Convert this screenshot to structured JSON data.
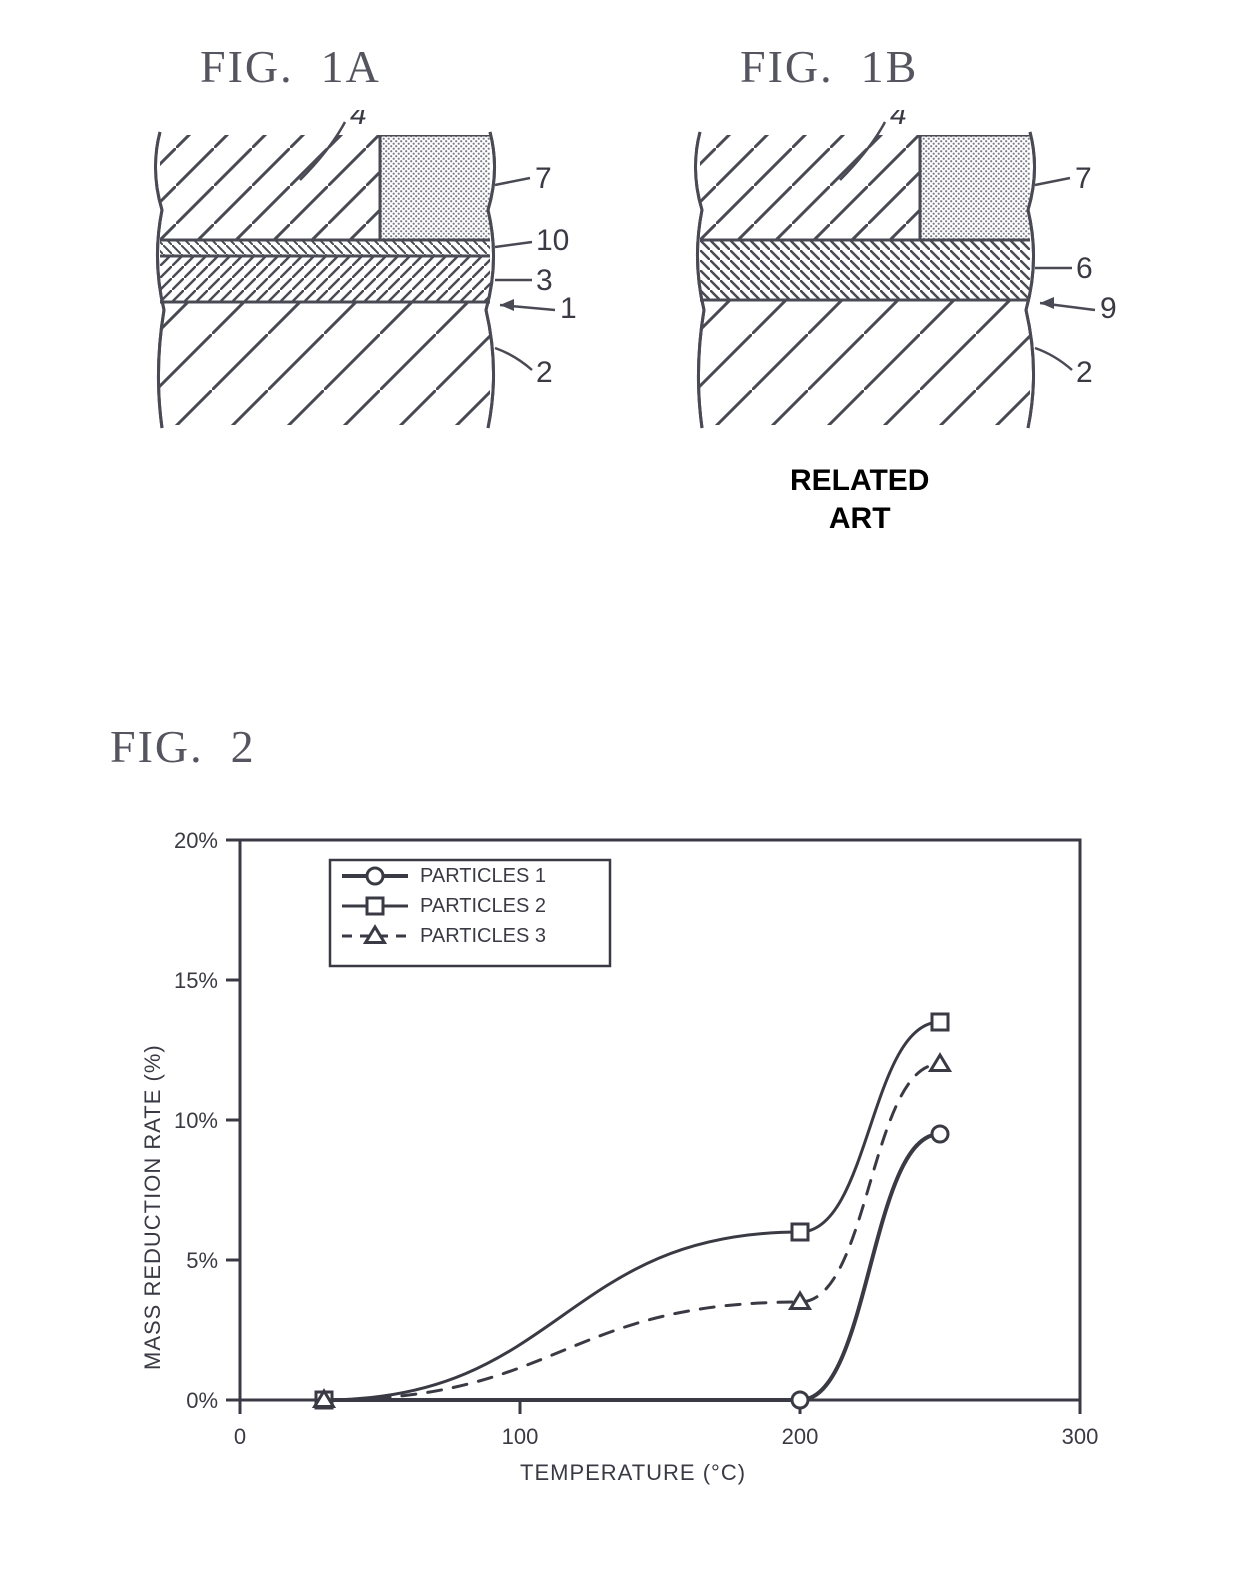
{
  "fig1a": {
    "label": "FIG.  1A",
    "label_fontsize": 46,
    "callouts": [
      "4",
      "7",
      "10",
      "3",
      "1",
      "2"
    ],
    "callout_fontsize": 30,
    "stroke": "#4a4a55",
    "stroke_width": 3,
    "layers": {
      "topHatchSpacing": 38,
      "midHatchSpacing": 12,
      "thinHatchSpacing": 9,
      "bottomHatchSpacing": 56,
      "dottedFill": "#7b7b88"
    }
  },
  "fig1b": {
    "label": "FIG.  1B",
    "label_fontsize": 46,
    "related_art": "RELATED\nART",
    "related_art_fontsize": 30,
    "callouts": [
      "4",
      "7",
      "6",
      "9",
      "2"
    ],
    "callout_fontsize": 30,
    "stroke": "#4a4a55",
    "stroke_width": 3
  },
  "fig2": {
    "label": "FIG.  2",
    "label_fontsize": 22,
    "type": "line",
    "xlabel": "TEMPERATURE (°C)",
    "ylabel": "MASS REDUCTION RATE (%)",
    "xlim": [
      0,
      300
    ],
    "ylim": [
      0,
      20
    ],
    "xticks": [
      0,
      100,
      200,
      300
    ],
    "yticks": [
      "0%",
      "5%",
      "10%",
      "15%",
      "20%"
    ],
    "ytick_values": [
      0,
      5,
      10,
      15,
      20
    ],
    "tick_fontsize": 22,
    "background_color": "#ffffff",
    "axis_color": "#3a3a44",
    "axis_width": 3,
    "legend": {
      "items": [
        "PARTICLES 1",
        "PARTICLES 2",
        "PARTICLES 3"
      ],
      "fontsize": 20,
      "border_color": "#3a3a44"
    },
    "series": [
      {
        "name": "PARTICLES 1",
        "marker": "circle",
        "dash": "solid",
        "line_width": 4,
        "points": [
          [
            30,
            0
          ],
          [
            200,
            0
          ],
          [
            250,
            9.5
          ]
        ]
      },
      {
        "name": "PARTICLES 2",
        "marker": "square",
        "dash": "solid",
        "line_width": 3,
        "points": [
          [
            30,
            0
          ],
          [
            200,
            6.0
          ],
          [
            250,
            13.5
          ]
        ]
      },
      {
        "name": "PARTICLES 3",
        "marker": "triangle",
        "dash": "dashed",
        "line_width": 3,
        "points": [
          [
            30,
            0
          ],
          [
            200,
            3.5
          ],
          [
            250,
            12.0
          ]
        ]
      }
    ],
    "marker_size": 16,
    "marker_stroke": "#3a3a44",
    "marker_fill": "#ffffff"
  }
}
